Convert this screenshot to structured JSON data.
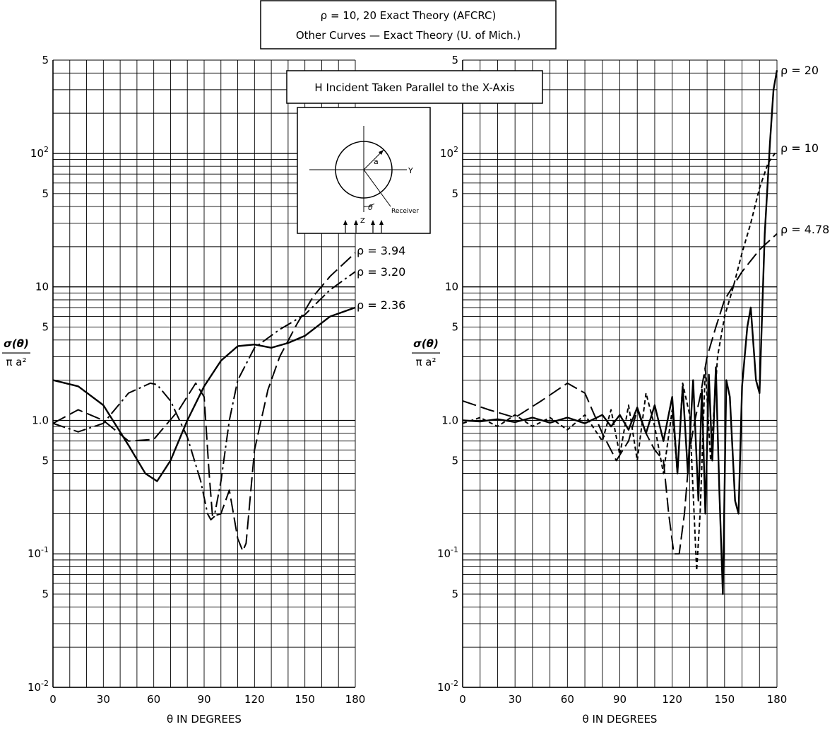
{
  "legend": {
    "line1": "ρ = 10, 20 Exact Theory (AFCRC)",
    "line2": "Other Curves — Exact Theory (U. of Mich.)"
  },
  "inset": {
    "title": "H Incident Taken Parallel to the X-Axis",
    "label_a": "a",
    "label_y": "Y",
    "label_z": "Z",
    "label_theta": "θ",
    "label_receiver": "Receiver"
  },
  "chart_data": [
    {
      "type": "line",
      "xlabel": "θ IN DEGREES",
      "ylabel_num": "σ(θ)",
      "ylabel_den": "π a²",
      "xlim": [
        0,
        180
      ],
      "ylim": [
        0.01,
        500
      ],
      "yscale": "log",
      "grid": true,
      "x_ticks": [
        "0",
        "30",
        "60",
        "90",
        "120",
        "150",
        "180"
      ],
      "y_ticks": [
        {
          "value": 0.01,
          "base": "10",
          "exp": "-2"
        },
        {
          "value": 0.05,
          "base": "5",
          "exp": ""
        },
        {
          "value": 0.1,
          "base": "10",
          "exp": "-1"
        },
        {
          "value": 0.5,
          "base": "5",
          "exp": ""
        },
        {
          "value": 1,
          "base": "1.0",
          "exp": ""
        },
        {
          "value": 5,
          "base": "5",
          "exp": ""
        },
        {
          "value": 10,
          "base": "10",
          "exp": ""
        },
        {
          "value": 50,
          "base": "5",
          "exp": ""
        },
        {
          "value": 100,
          "base": "10",
          "exp": "2"
        },
        {
          "value": 500,
          "base": "5",
          "exp": ""
        }
      ],
      "series": [
        {
          "name": "ρ = 3.94",
          "dash": "long",
          "x": [
            0,
            15,
            30,
            45,
            60,
            75,
            85,
            90,
            93,
            95,
            100,
            105,
            110,
            113,
            115,
            120,
            128,
            135,
            145,
            155,
            165,
            180
          ],
          "y": [
            0.95,
            1.2,
            1.0,
            0.7,
            0.72,
            1.2,
            1.9,
            1.5,
            0.4,
            0.19,
            0.2,
            0.3,
            0.13,
            0.105,
            0.12,
            0.6,
            1.7,
            3.0,
            5.2,
            8.5,
            12,
            18
          ]
        },
        {
          "name": "ρ = 3.20",
          "dash": "dashdot",
          "x": [
            0,
            15,
            30,
            45,
            58,
            62,
            70,
            80,
            88,
            92,
            94,
            96,
            100,
            105,
            110,
            120,
            135,
            150,
            165,
            180
          ],
          "y": [
            0.95,
            0.82,
            0.95,
            1.6,
            1.9,
            1.85,
            1.4,
            0.75,
            0.35,
            0.2,
            0.18,
            0.19,
            0.35,
            1.0,
            2.0,
            3.5,
            4.8,
            6.2,
            9.5,
            13
          ]
        },
        {
          "name": "ρ = 2.36",
          "dash": "solid",
          "x": [
            0,
            15,
            30,
            45,
            55,
            62,
            70,
            80,
            90,
            100,
            110,
            120,
            130,
            140,
            150,
            165,
            180
          ],
          "y": [
            2.0,
            1.8,
            1.3,
            0.65,
            0.4,
            0.35,
            0.5,
            1.0,
            1.8,
            2.8,
            3.6,
            3.7,
            3.5,
            3.8,
            4.3,
            6.0,
            7.0
          ]
        }
      ]
    },
    {
      "type": "line",
      "xlabel": "θ IN DEGREES",
      "ylabel_num": "σ(θ)",
      "ylabel_den": "π a²",
      "xlim": [
        0,
        180
      ],
      "ylim": [
        0.01,
        500
      ],
      "yscale": "log",
      "grid": true,
      "x_ticks": [
        "0",
        "30",
        "60",
        "90",
        "120",
        "150",
        "180"
      ],
      "y_ticks": [
        {
          "value": 0.01,
          "base": "10",
          "exp": "-2"
        },
        {
          "value": 0.05,
          "base": "5",
          "exp": ""
        },
        {
          "value": 0.1,
          "base": "10",
          "exp": "-1"
        },
        {
          "value": 0.5,
          "base": "5",
          "exp": ""
        },
        {
          "value": 1,
          "base": "1.0",
          "exp": ""
        },
        {
          "value": 5,
          "base": "5",
          "exp": ""
        },
        {
          "value": 10,
          "base": "10",
          "exp": ""
        },
        {
          "value": 50,
          "base": "5",
          "exp": ""
        },
        {
          "value": 100,
          "base": "10",
          "exp": "2"
        },
        {
          "value": 500,
          "base": "5",
          "exp": ""
        }
      ],
      "series": [
        {
          "name": "ρ = 20",
          "dash": "solid",
          "x": [
            0,
            10,
            20,
            30,
            40,
            50,
            60,
            70,
            80,
            85,
            90,
            95,
            100,
            105,
            110,
            115,
            120,
            123,
            126,
            129,
            132,
            135,
            137,
            139,
            141,
            143,
            145,
            147,
            149,
            151,
            153,
            156,
            158,
            160,
            163,
            165,
            168,
            170,
            173,
            176,
            178,
            180
          ],
          "y": [
            1.0,
            0.98,
            1.02,
            0.97,
            1.05,
            0.96,
            1.05,
            0.95,
            1.1,
            0.9,
            1.1,
            0.85,
            1.25,
            0.8,
            1.3,
            0.7,
            1.5,
            0.4,
            1.8,
            0.4,
            2.0,
            0.25,
            1.7,
            0.2,
            2.2,
            0.5,
            2.5,
            0.3,
            0.05,
            2.0,
            1.5,
            0.25,
            0.2,
            1.8,
            5.0,
            7.0,
            2.0,
            1.6,
            25,
            120,
            300,
            420
          ]
        },
        {
          "name": "ρ = 10",
          "dash": "short",
          "x": [
            0,
            10,
            20,
            30,
            40,
            50,
            60,
            70,
            80,
            85,
            90,
            95,
            100,
            105,
            110,
            115,
            120,
            123,
            126,
            130,
            134,
            136,
            139,
            142,
            146,
            150,
            155,
            160,
            165,
            170,
            175,
            180
          ],
          "y": [
            0.95,
            1.05,
            0.9,
            1.1,
            0.9,
            1.05,
            0.85,
            1.1,
            0.7,
            1.2,
            0.55,
            1.3,
            0.5,
            1.6,
            0.9,
            0.4,
            1.2,
            0.4,
            1.9,
            1.1,
            0.075,
            0.2,
            2.5,
            0.5,
            3.0,
            6.0,
            10,
            18,
            30,
            55,
            85,
            105
          ]
        },
        {
          "name": "ρ = 4.78",
          "dash": "long",
          "x": [
            0,
            15,
            30,
            45,
            60,
            70,
            80,
            88,
            95,
            100,
            105,
            110,
            115,
            118,
            121,
            124,
            127,
            130,
            133,
            136,
            140,
            145,
            150,
            160,
            170,
            180
          ],
          "y": [
            1.4,
            1.2,
            1.05,
            1.4,
            1.9,
            1.6,
            0.8,
            0.5,
            0.7,
            1.2,
            0.8,
            0.6,
            0.5,
            0.2,
            0.1,
            0.1,
            0.2,
            0.6,
            1.0,
            1.5,
            3.0,
            5.0,
            8.0,
            13,
            19,
            25
          ]
        }
      ]
    }
  ]
}
